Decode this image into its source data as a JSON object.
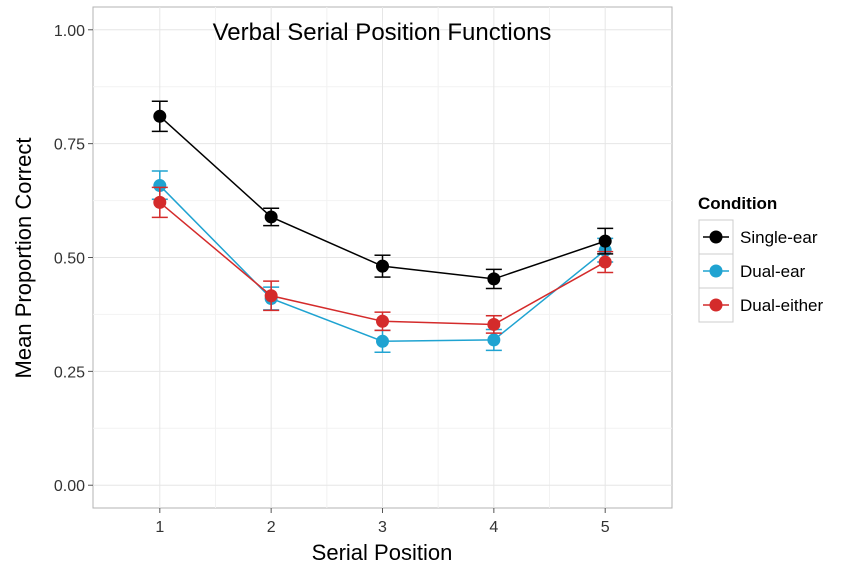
{
  "chart_data": {
    "type": "line",
    "title": "Verbal Serial Position Functions",
    "xlabel": "Serial Position",
    "ylabel": "Mean Proportion Correct",
    "x": [
      1,
      2,
      3,
      4,
      5
    ],
    "x_tick_labels": [
      "1",
      "2",
      "3",
      "4",
      "5"
    ],
    "xlim": [
      0.4,
      5.6
    ],
    "ylim": [
      -0.05,
      1.05
    ],
    "y_ticks": [
      0.0,
      0.25,
      0.5,
      0.75,
      1.0
    ],
    "y_tick_labels": [
      "0.00",
      "0.25",
      "0.50",
      "0.75",
      "1.00"
    ],
    "grid": true,
    "legend": {
      "title": "Condition",
      "position": "right"
    },
    "series": [
      {
        "name": "Dual-ear",
        "color": "#1fa3d1",
        "values": [
          0.658,
          0.41,
          0.316,
          0.319,
          0.516
        ],
        "error_low": [
          0.628,
          0.385,
          0.292,
          0.296,
          0.49
        ],
        "error_high": [
          0.69,
          0.435,
          0.34,
          0.342,
          0.542
        ]
      },
      {
        "name": "Dual-either",
        "color": "#d42b2b",
        "values": [
          0.621,
          0.416,
          0.36,
          0.353,
          0.49
        ],
        "error_low": [
          0.588,
          0.384,
          0.34,
          0.334,
          0.467
        ],
        "error_high": [
          0.654,
          0.448,
          0.38,
          0.372,
          0.513
        ]
      },
      {
        "name": "Single-ear",
        "color": "#000000",
        "values": [
          0.81,
          0.589,
          0.481,
          0.453,
          0.536
        ],
        "error_low": [
          0.777,
          0.57,
          0.457,
          0.432,
          0.508
        ],
        "error_high": [
          0.843,
          0.608,
          0.505,
          0.474,
          0.564
        ]
      }
    ],
    "legend_order": [
      "Single-ear",
      "Dual-ear",
      "Dual-either"
    ]
  }
}
